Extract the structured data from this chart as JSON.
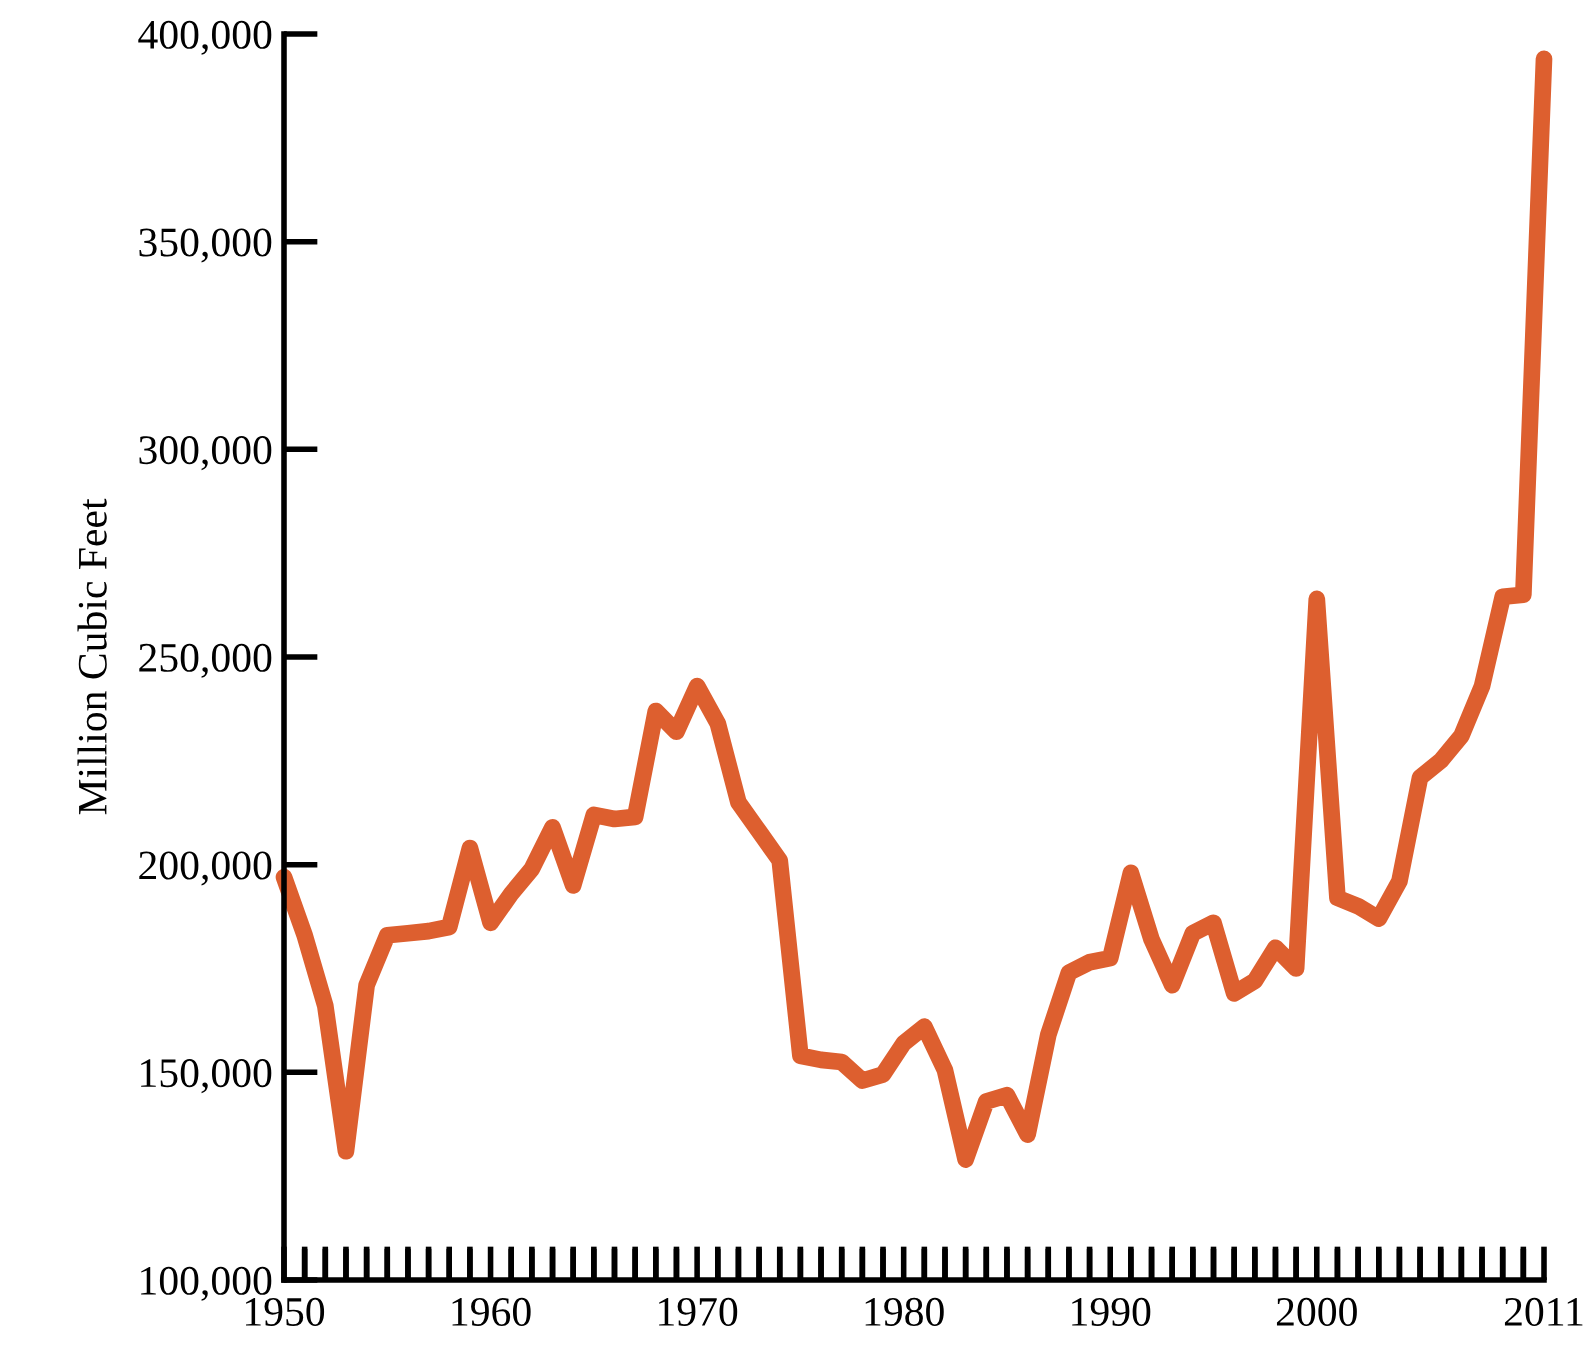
{
  "chart_data": {
    "type": "line",
    "ylabel": "Million Cubic Feet",
    "color": "#dd5f2f",
    "x": [
      1950,
      1951,
      1952,
      1953,
      1954,
      1955,
      1956,
      1957,
      1958,
      1959,
      1960,
      1961,
      1962,
      1963,
      1964,
      1965,
      1966,
      1967,
      1968,
      1969,
      1970,
      1971,
      1972,
      1973,
      1974,
      1975,
      1976,
      1977,
      1978,
      1979,
      1980,
      1981,
      1982,
      1983,
      1984,
      1985,
      1986,
      1987,
      1988,
      1989,
      1990,
      1991,
      1992,
      1993,
      1994,
      1995,
      1996,
      1997,
      1998,
      1999,
      2000,
      2001,
      2002,
      2003,
      2004,
      2005,
      2006,
      2007,
      2008,
      2009,
      2010,
      2011
    ],
    "values": [
      197000,
      183000,
      166000,
      131000,
      171000,
      183000,
      183500,
      184000,
      185000,
      204000,
      186000,
      193000,
      199000,
      209000,
      195000,
      212000,
      211000,
      211500,
      237000,
      232000,
      243000,
      234000,
      215000,
      208000,
      201000,
      154000,
      153000,
      152500,
      148000,
      149500,
      157000,
      161000,
      150500,
      129000,
      143000,
      144500,
      135000,
      159000,
      174000,
      176500,
      177500,
      198000,
      182000,
      171000,
      183500,
      186000,
      169000,
      172000,
      180000,
      175000,
      264000,
      192000,
      190000,
      187000,
      196000,
      221000,
      225000,
      231000,
      243000,
      264500,
      265000,
      394000
    ],
    "xlim": [
      1950,
      2011
    ],
    "ylim": [
      100000,
      400000
    ],
    "xticks": [
      1950,
      {
        "value": 1951,
        "label": null
      },
      {
        "value": 1952,
        "label": null
      },
      {
        "value": 1953,
        "label": null
      },
      {
        "value": 1954,
        "label": null
      },
      {
        "value": 1955,
        "label": null
      },
      {
        "value": 1956,
        "label": null
      },
      {
        "value": 1957,
        "label": null
      },
      {
        "value": 1958,
        "label": null
      },
      {
        "value": 1959,
        "label": null
      },
      1960,
      {
        "value": 1961,
        "label": null
      },
      {
        "value": 1962,
        "label": null
      },
      {
        "value": 1963,
        "label": null
      },
      {
        "value": 1964,
        "label": null
      },
      {
        "value": 1965,
        "label": null
      },
      {
        "value": 1966,
        "label": null
      },
      {
        "value": 1967,
        "label": null
      },
      {
        "value": 1968,
        "label": null
      },
      {
        "value": 1969,
        "label": null
      },
      1970,
      {
        "value": 1971,
        "label": null
      },
      {
        "value": 1972,
        "label": null
      },
      {
        "value": 1973,
        "label": null
      },
      {
        "value": 1974,
        "label": null
      },
      {
        "value": 1975,
        "label": null
      },
      {
        "value": 1976,
        "label": null
      },
      {
        "value": 1977,
        "label": null
      },
      {
        "value": 1978,
        "label": null
      },
      {
        "value": 1979,
        "label": null
      },
      1980,
      {
        "value": 1981,
        "label": null
      },
      {
        "value": 1982,
        "label": null
      },
      {
        "value": 1983,
        "label": null
      },
      {
        "value": 1984,
        "label": null
      },
      {
        "value": 1985,
        "label": null
      },
      {
        "value": 1986,
        "label": null
      },
      {
        "value": 1987,
        "label": null
      },
      {
        "value": 1988,
        "label": null
      },
      {
        "value": 1989,
        "label": null
      },
      1990,
      {
        "value": 1991,
        "label": null
      },
      {
        "value": 1992,
        "label": null
      },
      {
        "value": 1993,
        "label": null
      },
      {
        "value": 1994,
        "label": null
      },
      {
        "value": 1995,
        "label": null
      },
      {
        "value": 1996,
        "label": null
      },
      {
        "value": 1997,
        "label": null
      },
      {
        "value": 1998,
        "label": null
      },
      {
        "value": 1999,
        "label": null
      },
      2000,
      {
        "value": 2001,
        "label": null
      },
      {
        "value": 2002,
        "label": null
      },
      {
        "value": 2003,
        "label": null
      },
      {
        "value": 2004,
        "label": null
      },
      {
        "value": 2005,
        "label": null
      },
      {
        "value": 2006,
        "label": null
      },
      {
        "value": 2007,
        "label": null
      },
      {
        "value": 2008,
        "label": null
      },
      {
        "value": 2009,
        "label": null
      },
      {
        "value": 2010,
        "label": null
      },
      2011
    ],
    "yticks": [
      {
        "value": 100000,
        "label": "100,000"
      },
      {
        "value": 150000,
        "label": "150,000"
      },
      {
        "value": 200000,
        "label": "200,000"
      },
      {
        "value": 250000,
        "label": "250,000"
      },
      {
        "value": 300000,
        "label": "300,000"
      },
      {
        "value": 350000,
        "label": "350,000"
      },
      {
        "value": 400000,
        "label": "400,000"
      }
    ],
    "grid": false,
    "legend": false,
    "marker": "none",
    "line_style": "solid"
  }
}
